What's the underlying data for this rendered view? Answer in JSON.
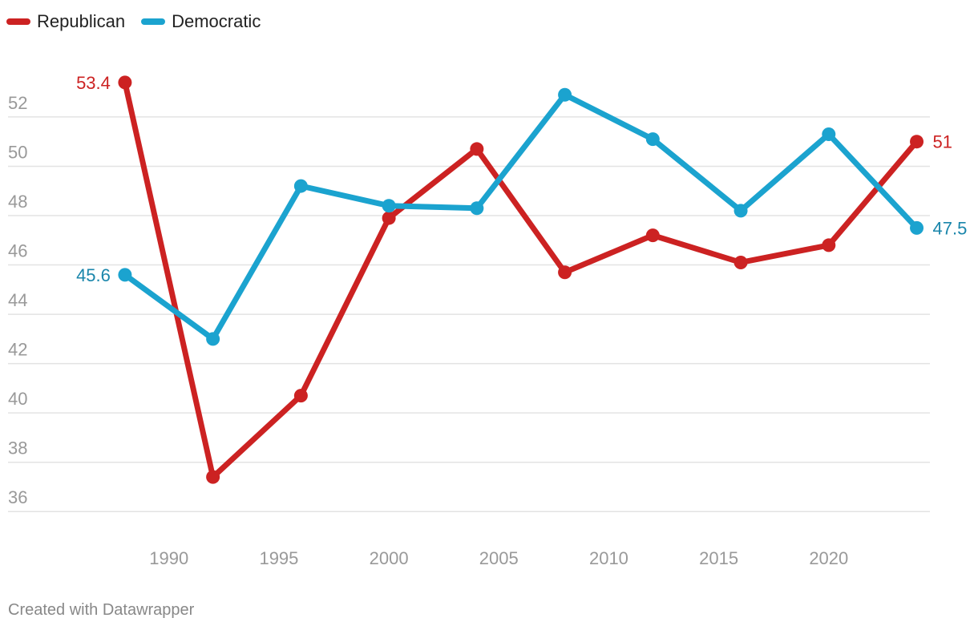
{
  "chart_data": {
    "type": "line",
    "title": "",
    "xlabel": "",
    "ylabel": "",
    "x": [
      1988,
      1992,
      1996,
      2000,
      2004,
      2008,
      2012,
      2016,
      2020,
      2024
    ],
    "xticks": [
      1990,
      1995,
      2000,
      2005,
      2010,
      2015,
      2020
    ],
    "yticks": [
      36,
      38,
      40,
      42,
      44,
      46,
      48,
      50,
      52
    ],
    "xlim": [
      1986.4,
      2024.6
    ],
    "ylim": [
      35,
      54.5
    ],
    "grid": "horizontal",
    "legend": {
      "placement": "top-left"
    },
    "series": [
      {
        "name": "Republican",
        "color": "#cc2222",
        "label_color": "#cc2222",
        "values": [
          53.4,
          37.4,
          40.7,
          47.9,
          50.7,
          45.7,
          47.2,
          46.1,
          46.8,
          51.0
        ],
        "first_label": "53.4",
        "last_label": "51"
      },
      {
        "name": "Democratic",
        "color": "#1ba3cf",
        "label_color": "#1a86ab",
        "values": [
          45.6,
          43.0,
          49.2,
          48.4,
          48.3,
          52.9,
          51.1,
          48.2,
          51.3,
          47.5
        ],
        "first_label": "45.6",
        "last_label": "47.5"
      }
    ]
  },
  "footer": "Created with Datawrapper"
}
